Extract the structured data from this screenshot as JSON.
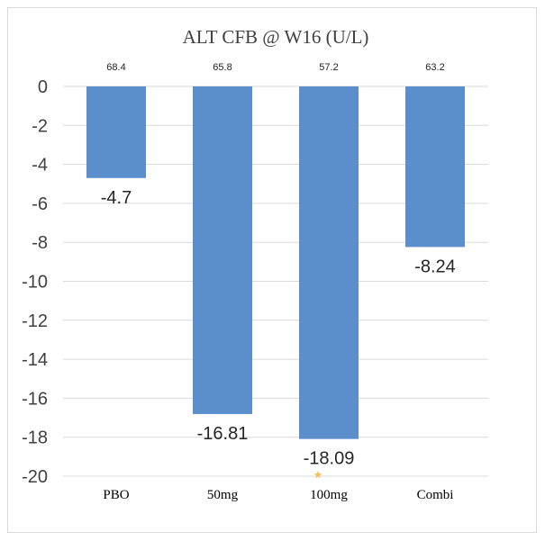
{
  "chart_data": {
    "type": "bar",
    "title": "ALT CFB @ W16 (U/L)",
    "categories": [
      "PBO",
      "50mg",
      "100mg",
      "Combi"
    ],
    "values": [
      -4.7,
      -16.81,
      -18.09,
      -8.24
    ],
    "value_labels": [
      "-4.7",
      "-16.81",
      "-18.09",
      "-8.24"
    ],
    "top_labels": [
      "68.4",
      "65.8",
      "57.2",
      "63.2"
    ],
    "yticks": [
      "0",
      "-2",
      "-4",
      "-6",
      "-8",
      "-10",
      "-12",
      "-14",
      "-16",
      "-18",
      "-20"
    ],
    "ylim": [
      -20,
      0
    ],
    "grid": true,
    "bar_color": "#5b8fcb",
    "annotation": {
      "category": "100mg",
      "symbol": "★",
      "color": "#f2c14e"
    }
  }
}
